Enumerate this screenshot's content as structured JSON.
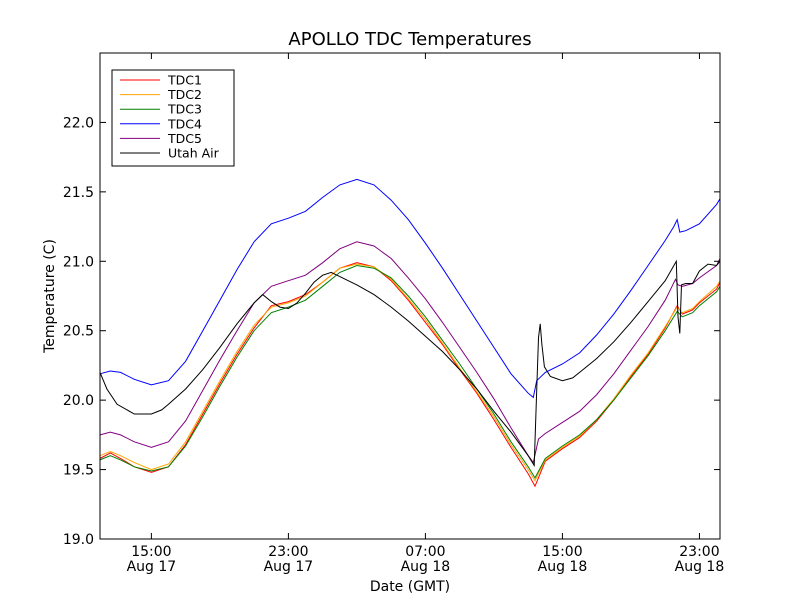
{
  "chart_data": {
    "type": "line",
    "title": "APOLLO TDC Temperatures",
    "xlabel": "Date (GMT)",
    "ylabel": "Temperature (C)",
    "xlim": [
      12,
      48.2
    ],
    "ylim": [
      19.0,
      22.5
    ],
    "yticks": [
      19.0,
      19.5,
      20.0,
      20.5,
      21.0,
      21.5,
      22.0
    ],
    "ytick_labels": [
      "19.0",
      "19.5",
      "20.0",
      "20.5",
      "21.0",
      "21.5",
      "22.0"
    ],
    "xticks": [
      {
        "x": 15,
        "time": "15:00",
        "date": "Aug 17"
      },
      {
        "x": 23,
        "time": "23:00",
        "date": "Aug 17"
      },
      {
        "x": 31,
        "time": "07:00",
        "date": "Aug 18"
      },
      {
        "x": 39,
        "time": "15:00",
        "date": "Aug 18"
      },
      {
        "x": 47,
        "time": "23:00",
        "date": "Aug 18"
      }
    ],
    "x_unit": "hours since 00:00 Aug 17 (GMT)",
    "legend_position": "top-left",
    "series": [
      {
        "name": "TDC1",
        "color": "#ff0000",
        "points": [
          [
            12,
            19.58
          ],
          [
            12.6,
            19.62
          ],
          [
            13.2,
            19.58
          ],
          [
            14,
            19.52
          ],
          [
            15,
            19.48
          ],
          [
            16,
            19.52
          ],
          [
            17,
            19.68
          ],
          [
            18,
            19.9
          ],
          [
            19,
            20.12
          ],
          [
            20,
            20.33
          ],
          [
            21,
            20.52
          ],
          [
            22,
            20.68
          ],
          [
            23,
            20.71
          ],
          [
            24,
            20.76
          ],
          [
            25,
            20.85
          ],
          [
            26,
            20.95
          ],
          [
            27,
            20.99
          ],
          [
            28,
            20.96
          ],
          [
            29,
            20.86
          ],
          [
            30,
            20.72
          ],
          [
            31,
            20.56
          ],
          [
            32,
            20.4
          ],
          [
            33,
            20.22
          ],
          [
            34,
            20.05
          ],
          [
            35,
            19.86
          ],
          [
            36,
            19.66
          ],
          [
            37,
            19.47
          ],
          [
            37.4,
            19.38
          ],
          [
            38,
            19.56
          ],
          [
            39,
            19.65
          ],
          [
            40,
            19.73
          ],
          [
            41,
            19.85
          ],
          [
            42,
            20.0
          ],
          [
            43,
            20.17
          ],
          [
            44,
            20.33
          ],
          [
            45,
            20.52
          ],
          [
            45.7,
            20.68
          ],
          [
            46,
            20.62
          ],
          [
            46.6,
            20.65
          ],
          [
            47,
            20.7
          ],
          [
            48,
            20.8
          ],
          [
            48.2,
            20.85
          ]
        ]
      },
      {
        "name": "TDC2",
        "color": "#ffa500",
        "points": [
          [
            12,
            19.6
          ],
          [
            12.6,
            19.63
          ],
          [
            13.2,
            19.6
          ],
          [
            14,
            19.55
          ],
          [
            15,
            19.5
          ],
          [
            16,
            19.54
          ],
          [
            17,
            19.7
          ],
          [
            18,
            19.92
          ],
          [
            19,
            20.14
          ],
          [
            20,
            20.35
          ],
          [
            21,
            20.54
          ],
          [
            22,
            20.67
          ],
          [
            23,
            20.7
          ],
          [
            24,
            20.75
          ],
          [
            25,
            20.85
          ],
          [
            26,
            20.95
          ],
          [
            27,
            20.98
          ],
          [
            28,
            20.96
          ],
          [
            29,
            20.87
          ],
          [
            30,
            20.73
          ],
          [
            31,
            20.58
          ],
          [
            32,
            20.41
          ],
          [
            33,
            20.23
          ],
          [
            34,
            20.06
          ],
          [
            35,
            19.88
          ],
          [
            36,
            19.68
          ],
          [
            37,
            19.5
          ],
          [
            37.4,
            19.42
          ],
          [
            38,
            19.57
          ],
          [
            39,
            19.66
          ],
          [
            40,
            19.74
          ],
          [
            41,
            19.86
          ],
          [
            42,
            20.01
          ],
          [
            43,
            20.18
          ],
          [
            44,
            20.34
          ],
          [
            45,
            20.53
          ],
          [
            45.7,
            20.67
          ],
          [
            46,
            20.63
          ],
          [
            46.6,
            20.66
          ],
          [
            47,
            20.71
          ],
          [
            48,
            20.82
          ],
          [
            48.2,
            20.86
          ]
        ]
      },
      {
        "name": "TDC3",
        "color": "#008000",
        "points": [
          [
            12,
            19.57
          ],
          [
            12.6,
            19.6
          ],
          [
            13.2,
            19.57
          ],
          [
            14,
            19.52
          ],
          [
            15,
            19.49
          ],
          [
            16,
            19.52
          ],
          [
            17,
            19.67
          ],
          [
            18,
            19.88
          ],
          [
            19,
            20.1
          ],
          [
            20,
            20.31
          ],
          [
            21,
            20.5
          ],
          [
            22,
            20.63
          ],
          [
            23,
            20.67
          ],
          [
            24,
            20.72
          ],
          [
            25,
            20.82
          ],
          [
            26,
            20.92
          ],
          [
            27,
            20.97
          ],
          [
            28,
            20.95
          ],
          [
            29,
            20.88
          ],
          [
            30,
            20.75
          ],
          [
            31,
            20.6
          ],
          [
            32,
            20.43
          ],
          [
            33,
            20.26
          ],
          [
            34,
            20.08
          ],
          [
            35,
            19.9
          ],
          [
            36,
            19.7
          ],
          [
            37,
            19.52
          ],
          [
            37.4,
            19.44
          ],
          [
            38,
            19.58
          ],
          [
            39,
            19.67
          ],
          [
            40,
            19.75
          ],
          [
            41,
            19.86
          ],
          [
            42,
            20.0
          ],
          [
            43,
            20.16
          ],
          [
            44,
            20.32
          ],
          [
            45,
            20.5
          ],
          [
            45.7,
            20.64
          ],
          [
            46,
            20.6
          ],
          [
            46.6,
            20.63
          ],
          [
            47,
            20.68
          ],
          [
            48,
            20.78
          ],
          [
            48.2,
            20.82
          ]
        ]
      },
      {
        "name": "TDC4",
        "color": "#0000ff",
        "points": [
          [
            12,
            20.19
          ],
          [
            12.6,
            20.21
          ],
          [
            13.2,
            20.2
          ],
          [
            14,
            20.15
          ],
          [
            15,
            20.11
          ],
          [
            16,
            20.14
          ],
          [
            17,
            20.28
          ],
          [
            18,
            20.5
          ],
          [
            19,
            20.72
          ],
          [
            20,
            20.94
          ],
          [
            21,
            21.14
          ],
          [
            22,
            21.27
          ],
          [
            23,
            21.31
          ],
          [
            24,
            21.36
          ],
          [
            25,
            21.46
          ],
          [
            26,
            21.55
          ],
          [
            27,
            21.59
          ],
          [
            28,
            21.55
          ],
          [
            29,
            21.44
          ],
          [
            30,
            21.3
          ],
          [
            31,
            21.13
          ],
          [
            32,
            20.95
          ],
          [
            33,
            20.76
          ],
          [
            34,
            20.57
          ],
          [
            35,
            20.38
          ],
          [
            36,
            20.19
          ],
          [
            37,
            20.05
          ],
          [
            37.3,
            20.02
          ],
          [
            37.5,
            20.14
          ],
          [
            38,
            20.2
          ],
          [
            39,
            20.26
          ],
          [
            40,
            20.34
          ],
          [
            41,
            20.47
          ],
          [
            42,
            20.62
          ],
          [
            43,
            20.79
          ],
          [
            44,
            20.97
          ],
          [
            45,
            21.15
          ],
          [
            45.5,
            21.25
          ],
          [
            45.7,
            21.3
          ],
          [
            45.85,
            21.21
          ],
          [
            46.2,
            21.22
          ],
          [
            47,
            21.27
          ],
          [
            48,
            21.41
          ],
          [
            48.2,
            21.45
          ]
        ]
      },
      {
        "name": "TDC5",
        "color": "#800080",
        "points": [
          [
            12,
            19.75
          ],
          [
            12.6,
            19.77
          ],
          [
            13.2,
            19.75
          ],
          [
            14,
            19.7
          ],
          [
            15,
            19.66
          ],
          [
            16,
            19.7
          ],
          [
            17,
            19.85
          ],
          [
            18,
            20.07
          ],
          [
            19,
            20.29
          ],
          [
            20,
            20.5
          ],
          [
            21,
            20.7
          ],
          [
            22,
            20.82
          ],
          [
            23,
            20.86
          ],
          [
            24,
            20.9
          ],
          [
            25,
            20.99
          ],
          [
            26,
            21.09
          ],
          [
            27,
            21.14
          ],
          [
            28,
            21.11
          ],
          [
            29,
            21.02
          ],
          [
            30,
            20.88
          ],
          [
            31,
            20.73
          ],
          [
            32,
            20.56
          ],
          [
            33,
            20.38
          ],
          [
            34,
            20.2
          ],
          [
            35,
            20.01
          ],
          [
            36,
            19.8
          ],
          [
            37,
            19.6
          ],
          [
            37.3,
            19.55
          ],
          [
            37.6,
            19.72
          ],
          [
            38,
            19.76
          ],
          [
            39,
            19.84
          ],
          [
            40,
            19.92
          ],
          [
            41,
            20.04
          ],
          [
            42,
            20.19
          ],
          [
            43,
            20.36
          ],
          [
            44,
            20.53
          ],
          [
            45,
            20.72
          ],
          [
            45.6,
            20.87
          ],
          [
            45.75,
            20.83
          ],
          [
            46,
            20.82
          ],
          [
            46.6,
            20.84
          ],
          [
            47,
            20.88
          ],
          [
            48,
            20.97
          ],
          [
            48.2,
            21.02
          ]
        ]
      },
      {
        "name": "Utah Air",
        "color": "#000000",
        "points": [
          [
            12,
            20.2
          ],
          [
            12.4,
            20.08
          ],
          [
            13,
            19.97
          ],
          [
            14,
            19.9
          ],
          [
            15,
            19.9
          ],
          [
            15.6,
            19.93
          ],
          [
            16,
            19.97
          ],
          [
            17,
            20.08
          ],
          [
            18,
            20.22
          ],
          [
            19,
            20.38
          ],
          [
            20,
            20.55
          ],
          [
            21,
            20.7
          ],
          [
            21.5,
            20.76
          ],
          [
            22,
            20.71
          ],
          [
            22.5,
            20.67
          ],
          [
            23,
            20.66
          ],
          [
            23.5,
            20.7
          ],
          [
            24,
            20.77
          ],
          [
            24.5,
            20.85
          ],
          [
            25,
            20.9
          ],
          [
            25.5,
            20.92
          ],
          [
            26,
            20.89
          ],
          [
            27,
            20.83
          ],
          [
            28,
            20.76
          ],
          [
            29,
            20.67
          ],
          [
            30,
            20.57
          ],
          [
            31,
            20.46
          ],
          [
            32,
            20.35
          ],
          [
            33,
            20.22
          ],
          [
            34,
            20.08
          ],
          [
            35,
            19.92
          ],
          [
            36,
            19.77
          ],
          [
            37,
            19.6
          ],
          [
            37.35,
            19.53
          ],
          [
            37.5,
            20.07
          ],
          [
            37.6,
            20.45
          ],
          [
            37.7,
            20.55
          ],
          [
            37.8,
            20.4
          ],
          [
            37.95,
            20.24
          ],
          [
            38.3,
            20.17
          ],
          [
            39,
            20.14
          ],
          [
            39.6,
            20.16
          ],
          [
            40,
            20.2
          ],
          [
            41,
            20.3
          ],
          [
            42,
            20.42
          ],
          [
            43,
            20.56
          ],
          [
            44,
            20.71
          ],
          [
            45,
            20.86
          ],
          [
            45.65,
            21.0
          ],
          [
            45.75,
            20.6
          ],
          [
            45.85,
            20.48
          ],
          [
            45.95,
            20.83
          ],
          [
            46.2,
            20.84
          ],
          [
            46.6,
            20.84
          ],
          [
            47,
            20.93
          ],
          [
            47.5,
            20.98
          ],
          [
            48,
            20.97
          ],
          [
            48.2,
            21.0
          ]
        ]
      }
    ]
  }
}
